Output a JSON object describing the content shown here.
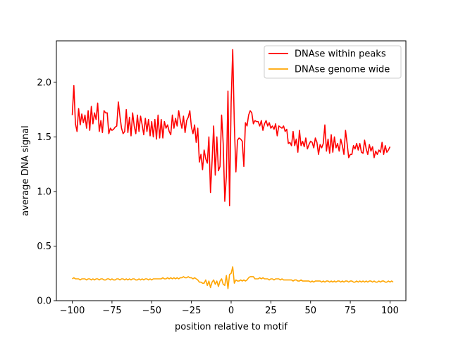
{
  "chart_data": {
    "type": "line",
    "title": "",
    "xlabel": "position relative to motif",
    "ylabel": "average DNA signal",
    "xlim": [
      -110,
      110
    ],
    "ylim": [
      0,
      2.38
    ],
    "xticks": [
      -100,
      -75,
      -50,
      -25,
      0,
      25,
      50,
      75,
      100
    ],
    "xtick_labels": [
      "−100",
      "−75",
      "−50",
      "−25",
      "0",
      "25",
      "50",
      "75",
      "100"
    ],
    "yticks": [
      0.0,
      0.5,
      1.0,
      1.5,
      2.0
    ],
    "ytick_labels": [
      "0.0",
      "0.5",
      "1.0",
      "1.5",
      "2.0"
    ],
    "grid": false,
    "legend_position": "top-right",
    "series": [
      {
        "name": "DNAse within peaks",
        "color": "#ff0000",
        "x_start": -100,
        "x_step": 1,
        "values": [
          1.7,
          1.97,
          1.62,
          1.55,
          1.76,
          1.61,
          1.71,
          1.63,
          1.7,
          1.58,
          1.74,
          1.56,
          1.78,
          1.62,
          1.72,
          1.66,
          1.81,
          1.55,
          1.65,
          1.54,
          1.74,
          1.72,
          1.72,
          1.53,
          1.58,
          1.56,
          1.57,
          1.59,
          1.6,
          1.82,
          1.69,
          1.58,
          1.53,
          1.55,
          1.75,
          1.54,
          1.68,
          1.51,
          1.72,
          1.6,
          1.53,
          1.7,
          1.55,
          1.69,
          1.61,
          1.52,
          1.67,
          1.55,
          1.66,
          1.51,
          1.64,
          1.5,
          1.66,
          1.48,
          1.7,
          1.49,
          1.66,
          1.49,
          1.64,
          1.58,
          1.61,
          1.55,
          1.52,
          1.7,
          1.58,
          1.67,
          1.6,
          1.74,
          1.65,
          1.58,
          1.69,
          1.54,
          1.65,
          1.68,
          1.74,
          1.59,
          1.53,
          1.61,
          1.45,
          1.58,
          1.27,
          1.34,
          1.2,
          1.38,
          1.3,
          1.26,
          1.5,
          0.99,
          1.28,
          1.6,
          1.15,
          1.5,
          1.19,
          1.23,
          1.7,
          1.44,
          0.91,
          1.14,
          1.92,
          0.87,
          1.82,
          2.3,
          1.62,
          1.18,
          1.47,
          1.49,
          1.48,
          1.46,
          1.23,
          1.63,
          1.6,
          1.7,
          1.74,
          1.72,
          1.62,
          1.65,
          1.64,
          1.64,
          1.6,
          1.65,
          1.56,
          1.62,
          1.65,
          1.6,
          1.63,
          1.58,
          1.6,
          1.57,
          1.62,
          1.51,
          1.6,
          1.59,
          1.58,
          1.6,
          1.55,
          1.57,
          1.44,
          1.45,
          1.42,
          1.55,
          1.42,
          1.48,
          1.36,
          1.56,
          1.42,
          1.46,
          1.41,
          1.49,
          1.39,
          1.43,
          1.46,
          1.45,
          1.4,
          1.49,
          1.45,
          1.34,
          1.43,
          1.4,
          1.44,
          1.61,
          1.37,
          1.48,
          1.35,
          1.52,
          1.36,
          1.5,
          1.4,
          1.44,
          1.37,
          1.48,
          1.42,
          1.34,
          1.56,
          1.44,
          1.31,
          1.34,
          1.34,
          1.42,
          1.39,
          1.44,
          1.38,
          1.44,
          1.36,
          1.35,
          1.47,
          1.39,
          1.34,
          1.43,
          1.37,
          1.41,
          1.31,
          1.37,
          1.34,
          1.38,
          1.36,
          1.45,
          1.34,
          1.42,
          1.36,
          1.38,
          1.41
        ]
      },
      {
        "name": "DNAse genome wide",
        "color": "#ffa500",
        "x_start": -100,
        "x_step": 1,
        "values": [
          0.2,
          0.21,
          0.2,
          0.2,
          0.2,
          0.19,
          0.2,
          0.2,
          0.2,
          0.19,
          0.2,
          0.2,
          0.19,
          0.2,
          0.19,
          0.2,
          0.2,
          0.19,
          0.2,
          0.2,
          0.19,
          0.19,
          0.2,
          0.2,
          0.19,
          0.2,
          0.19,
          0.19,
          0.2,
          0.2,
          0.19,
          0.2,
          0.2,
          0.19,
          0.2,
          0.19,
          0.2,
          0.19,
          0.2,
          0.2,
          0.19,
          0.19,
          0.2,
          0.19,
          0.2,
          0.19,
          0.2,
          0.2,
          0.19,
          0.2,
          0.19,
          0.2,
          0.2,
          0.2,
          0.2,
          0.2,
          0.2,
          0.21,
          0.2,
          0.2,
          0.21,
          0.2,
          0.21,
          0.2,
          0.21,
          0.2,
          0.21,
          0.2,
          0.21,
          0.21,
          0.22,
          0.21,
          0.21,
          0.22,
          0.21,
          0.21,
          0.2,
          0.21,
          0.2,
          0.19,
          0.17,
          0.17,
          0.16,
          0.16,
          0.19,
          0.14,
          0.18,
          0.12,
          0.17,
          0.19,
          0.15,
          0.18,
          0.13,
          0.18,
          0.2,
          0.15,
          0.14,
          0.23,
          0.11,
          0.24,
          0.25,
          0.31,
          0.16,
          0.19,
          0.18,
          0.18,
          0.19,
          0.18,
          0.19,
          0.18,
          0.19,
          0.21,
          0.22,
          0.22,
          0.22,
          0.2,
          0.2,
          0.2,
          0.21,
          0.2,
          0.21,
          0.2,
          0.2,
          0.2,
          0.19,
          0.2,
          0.2,
          0.19,
          0.2,
          0.2,
          0.2,
          0.19,
          0.2,
          0.19,
          0.19,
          0.19,
          0.19,
          0.19,
          0.19,
          0.18,
          0.19,
          0.19,
          0.18,
          0.18,
          0.19,
          0.18,
          0.18,
          0.18,
          0.18,
          0.18,
          0.17,
          0.18,
          0.17,
          0.18,
          0.18,
          0.18,
          0.18,
          0.17,
          0.18,
          0.17,
          0.18,
          0.18,
          0.17,
          0.18,
          0.17,
          0.18,
          0.17,
          0.18,
          0.18,
          0.17,
          0.18,
          0.17,
          0.18,
          0.18,
          0.17,
          0.18,
          0.18,
          0.17,
          0.17,
          0.18,
          0.17,
          0.18,
          0.17,
          0.18,
          0.17,
          0.18,
          0.17,
          0.18,
          0.18,
          0.17,
          0.18,
          0.17,
          0.17,
          0.18,
          0.17,
          0.18,
          0.18,
          0.17,
          0.17,
          0.18,
          0.17,
          0.18,
          0.17
        ]
      }
    ]
  }
}
